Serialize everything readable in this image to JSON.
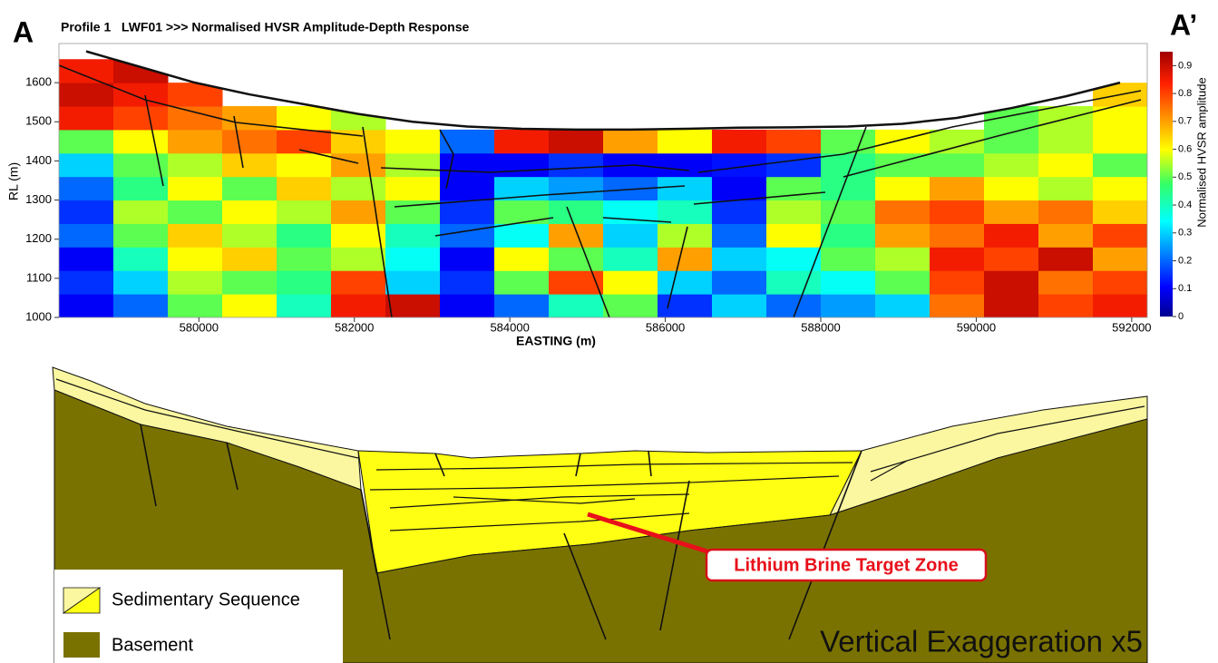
{
  "panel_labels": {
    "left": "A",
    "right": "A’"
  },
  "chart_data": {
    "type": "heatmap",
    "title": "Profile 1   LWF01 >>> Normalised HVSR Amplitude-Depth Response",
    "xlabel": "EASTING (m)",
    "ylabel": "RL (m)",
    "colorbar_label": "Normalised HVSR amplitude",
    "xlim": [
      578200,
      592200
    ],
    "ylim": [
      1000,
      1700
    ],
    "xticks": [
      580000,
      582000,
      584000,
      586000,
      588000,
      590000,
      592000
    ],
    "yticks": [
      1000,
      1100,
      1200,
      1300,
      1400,
      1500,
      1600
    ],
    "clim": [
      0,
      0.95
    ],
    "cticks": [
      0,
      0.1,
      0.2,
      0.3,
      0.4,
      0.5,
      0.6,
      0.7,
      0.8,
      0.9
    ],
    "colormap": "jet",
    "x": [
      578550,
      579250,
      579950,
      580650,
      581350,
      582050,
      582750,
      583450,
      584150,
      584850,
      585550,
      586250,
      586950,
      587650,
      588350,
      589050,
      589750,
      590450,
      591150,
      591850
    ],
    "y": [
      1030,
      1090,
      1150,
      1210,
      1270,
      1330,
      1390,
      1450,
      1510,
      1570,
      1630
    ],
    "surface": [
      1680,
      1640,
      1600,
      1570,
      1545,
      1520,
      1500,
      1488,
      1482,
      1480,
      1480,
      1482,
      1485,
      1486,
      1488,
      1495,
      1510,
      1535,
      1565,
      1600
    ],
    "z": [
      [
        0.1,
        0.2,
        0.5,
        0.6,
        0.4,
        0.85,
        0.9,
        0.1,
        0.2,
        0.4,
        0.5,
        0.15,
        0.3,
        0.2,
        0.25,
        0.3,
        0.75,
        0.9,
        0.8,
        0.85
      ],
      [
        0.15,
        0.3,
        0.55,
        0.5,
        0.45,
        0.8,
        0.3,
        0.15,
        0.5,
        0.8,
        0.6,
        0.3,
        0.2,
        0.4,
        0.35,
        0.5,
        0.8,
        0.9,
        0.75,
        0.8
      ],
      [
        0.1,
        0.4,
        0.6,
        0.65,
        0.5,
        0.55,
        0.35,
        0.1,
        0.6,
        0.5,
        0.4,
        0.7,
        0.3,
        0.35,
        0.5,
        0.55,
        0.85,
        0.8,
        0.9,
        0.7
      ],
      [
        0.2,
        0.5,
        0.65,
        0.55,
        0.45,
        0.6,
        0.4,
        0.2,
        0.35,
        0.7,
        0.3,
        0.55,
        0.2,
        0.6,
        0.45,
        0.7,
        0.75,
        0.85,
        0.7,
        0.8
      ],
      [
        0.15,
        0.55,
        0.5,
        0.6,
        0.55,
        0.7,
        0.5,
        0.15,
        0.5,
        0.45,
        0.35,
        0.4,
        0.15,
        0.55,
        0.5,
        0.75,
        0.8,
        0.7,
        0.75,
        0.65
      ],
      [
        0.2,
        0.45,
        0.6,
        0.5,
        0.65,
        0.55,
        0.6,
        0.1,
        0.3,
        0.25,
        0.2,
        0.3,
        0.1,
        0.5,
        0.45,
        0.6,
        0.7,
        0.6,
        0.55,
        0.6
      ],
      [
        0.3,
        0.5,
        0.55,
        0.65,
        0.6,
        0.7,
        0.55,
        0.1,
        0.1,
        0.15,
        0.1,
        0.1,
        0.12,
        0.15,
        0.45,
        0.5,
        0.5,
        0.55,
        0.6,
        0.5
      ],
      [
        0.5,
        0.6,
        0.7,
        0.75,
        0.8,
        0.65,
        0.6,
        0.2,
        0.85,
        0.9,
        0.7,
        0.6,
        0.85,
        0.8,
        0.5,
        0.6,
        0.55,
        0.5,
        0.55,
        0.6
      ],
      [
        0.85,
        0.8,
        0.75,
        0.7,
        0.6,
        0.55,
        null,
        null,
        null,
        null,
        null,
        null,
        null,
        null,
        null,
        null,
        null,
        0.5,
        0.55,
        0.6
      ],
      [
        0.9,
        0.85,
        0.8,
        null,
        null,
        null,
        null,
        null,
        null,
        null,
        null,
        null,
        null,
        null,
        null,
        null,
        null,
        null,
        null,
        0.65
      ],
      [
        0.85,
        0.9,
        null,
        null,
        null,
        null,
        null,
        null,
        null,
        null,
        null,
        null,
        null,
        null,
        null,
        null,
        null,
        null,
        null,
        null
      ]
    ]
  },
  "cross_section": {
    "legend": [
      "Sedimentary Sequence",
      "Basement"
    ],
    "annotation": "Lithium Brine Target Zone",
    "note": "Vertical Exaggeration x5"
  }
}
